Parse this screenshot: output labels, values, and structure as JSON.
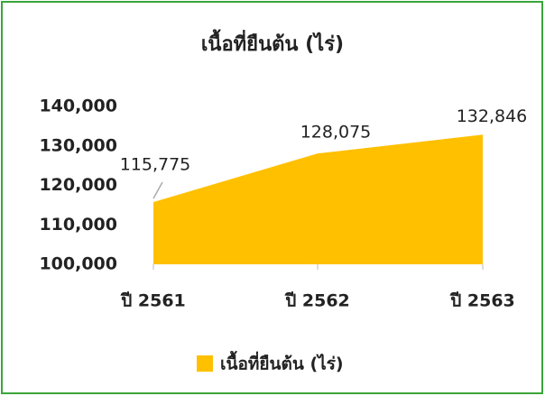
{
  "chart_data": {
    "type": "area",
    "title": "เนื้อที่ยืนต้น (ไร่)",
    "categories": [
      "ปี 2561",
      "ปี 2562",
      "ปี 2563"
    ],
    "series": [
      {
        "name": "เนื้อที่ยืนต้น (ไร่)",
        "color": "#ffc000",
        "values": [
          115775,
          128075,
          132846
        ],
        "value_labels": [
          "115,775",
          "128,075",
          "132,846"
        ]
      }
    ],
    "ylim": [
      100000,
      140000
    ],
    "yticks": [
      {
        "value": 100000,
        "label": "100,000"
      },
      {
        "value": 110000,
        "label": "110,000"
      },
      {
        "value": 120000,
        "label": "120,000"
      },
      {
        "value": 130000,
        "label": "130,000"
      },
      {
        "value": 140000,
        "label": "140,000"
      }
    ],
    "legend": "bottom"
  }
}
